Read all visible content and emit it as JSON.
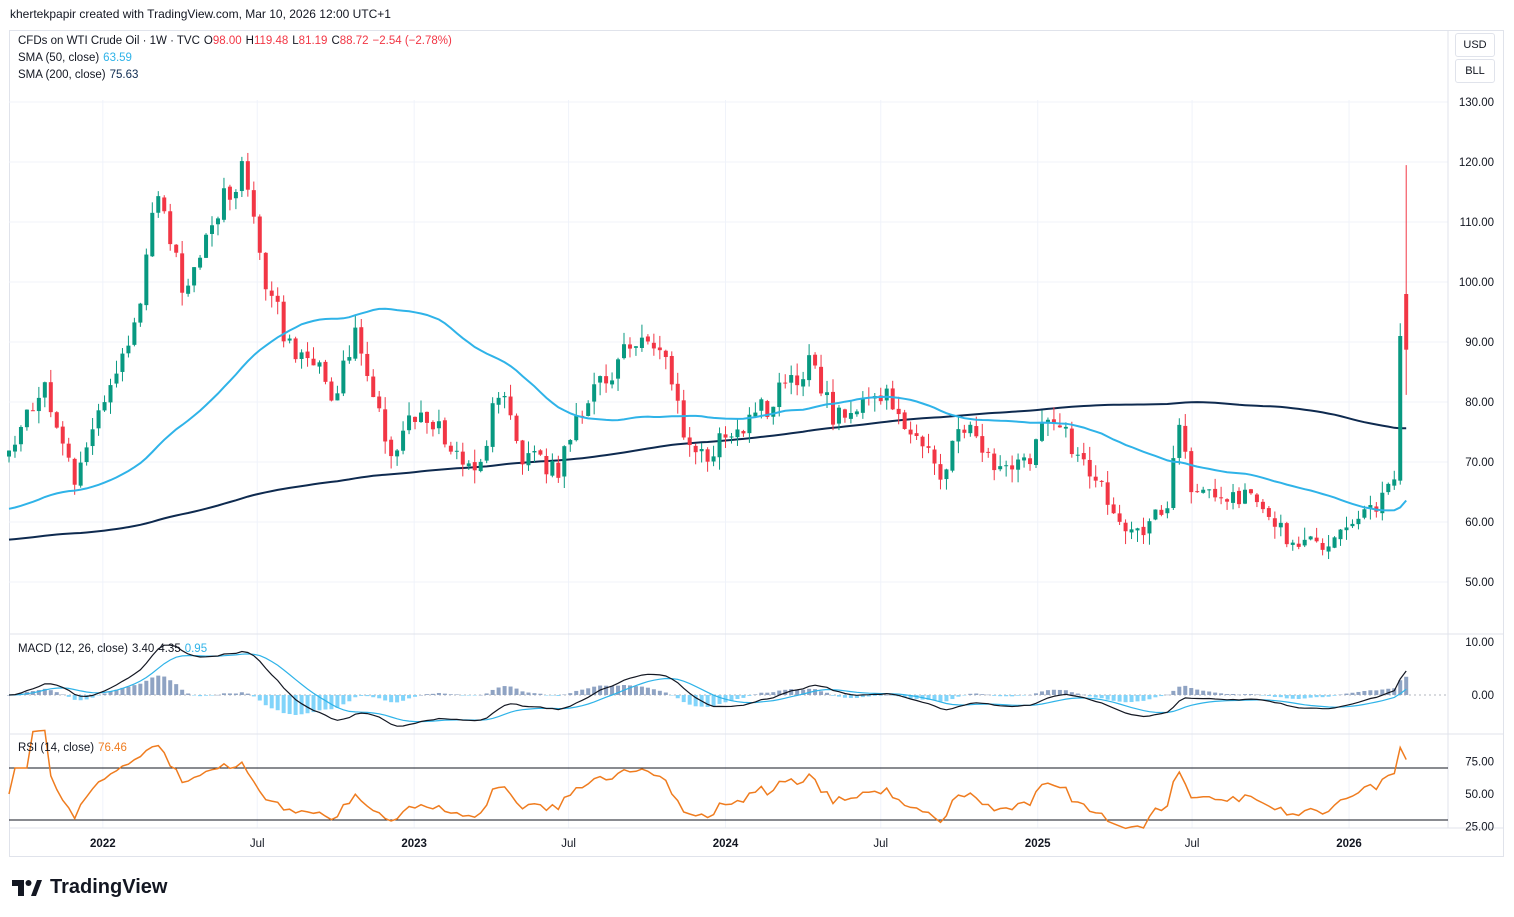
{
  "header": {
    "creator": "khertekpapir created with TradingView.com, Mar 10, 2026 12:00 UTC+1"
  },
  "legend": {
    "symbol": "CFDs on WTI Crude Oil · 1W · TVC",
    "o_label": "O",
    "o_value": "98.00",
    "h_label": "H",
    "h_value": "119.48",
    "l_label": "L",
    "l_value": "81.19",
    "c_label": "C",
    "c_value": "88.72",
    "change": "−2.54 (−2.78%)",
    "sma50_label": "SMA (50, close)",
    "sma50_value": "63.59",
    "sma200_label": "SMA (200, close)",
    "sma200_value": "75.63",
    "macd_label": "MACD (12, 26, close)",
    "macd_v1": "3.40",
    "macd_v2": "4.35",
    "macd_v3": "0.95",
    "rsi_label": "RSI (14, close)",
    "rsi_value": "76.46"
  },
  "scale": {
    "currency": "USD",
    "unit": "BLL"
  },
  "brand": {
    "name": "TradingView"
  },
  "colors": {
    "up": "#089981",
    "down": "#f23645",
    "sma50": "#2fb3e8",
    "sma200": "#0e2a4f",
    "macd": "#131722",
    "signal": "#2fb3e8",
    "rsi": "#ef7c1f",
    "hist_pos": "#8fa3c3",
    "hist_neg": "#81d4fa"
  },
  "chart_data": [
    {
      "type": "candlestick",
      "title": "CFDs on WTI Crude Oil · 1W · TVC",
      "y_ticks": [
        50,
        60,
        70,
        80,
        90,
        100,
        110,
        120,
        130
      ],
      "ylim": [
        45.5,
        134.5
      ],
      "x_ticks": [
        "2022",
        "Jul",
        "2023",
        "Jul",
        "2024",
        "Jul",
        "2025",
        "Jul",
        "2026"
      ],
      "x_tick_dates": [
        "2022-01-01",
        "2022-07-01",
        "2023-01-01",
        "2023-07-01",
        "2024-01-01",
        "2024-07-01",
        "2025-01-01",
        "2025-07-01",
        "2026-01-01"
      ],
      "x_range": [
        "2021-09-13",
        "2026-04-27"
      ],
      "weekly_close_anchors": [
        [
          "2021-09-13",
          71.5
        ],
        [
          "2021-10-25",
          83.5
        ],
        [
          "2021-11-29",
          66.5
        ],
        [
          "2022-01-10",
          83.0
        ],
        [
          "2022-02-07",
          91.5
        ],
        [
          "2022-03-07",
          115.0
        ],
        [
          "2022-04-04",
          98.5
        ],
        [
          "2022-05-09",
          110.0
        ],
        [
          "2022-06-13",
          118.0
        ],
        [
          "2022-07-04",
          104.0
        ],
        [
          "2022-08-08",
          89.0
        ],
        [
          "2022-09-05",
          87.0
        ],
        [
          "2022-09-26",
          79.5
        ],
        [
          "2022-10-24",
          90.5
        ],
        [
          "2022-12-05",
          71.5
        ],
        [
          "2023-01-09",
          79.5
        ],
        [
          "2023-03-13",
          67.0
        ],
        [
          "2023-04-10",
          82.0
        ],
        [
          "2023-05-08",
          71.0
        ],
        [
          "2023-06-19",
          69.0
        ],
        [
          "2023-07-24",
          80.5
        ],
        [
          "2023-09-25",
          91.5
        ],
        [
          "2023-10-23",
          85.5
        ],
        [
          "2023-11-13",
          75.0
        ],
        [
          "2023-12-11",
          71.5
        ],
        [
          "2024-02-12",
          78.5
        ],
        [
          "2024-04-08",
          86.0
        ],
        [
          "2024-05-06",
          78.0
        ],
        [
          "2024-06-10",
          79.0
        ],
        [
          "2024-07-08",
          82.0
        ],
        [
          "2024-09-09",
          67.5
        ],
        [
          "2024-10-07",
          76.0
        ],
        [
          "2024-11-11",
          68.5
        ],
        [
          "2024-12-23",
          70.5
        ],
        [
          "2025-01-13",
          78.5
        ],
        [
          "2025-03-10",
          67.0
        ],
        [
          "2025-04-07",
          60.0
        ],
        [
          "2025-05-05",
          58.0
        ],
        [
          "2025-06-02",
          63.5
        ],
        [
          "2025-06-16",
          75.5
        ],
        [
          "2025-06-30",
          66.5
        ],
        [
          "2025-08-04",
          64.5
        ],
        [
          "2025-09-15",
          63.5
        ],
        [
          "2025-10-20",
          57.5
        ],
        [
          "2025-12-15",
          56.5
        ],
        [
          "2026-01-19",
          61.0
        ],
        [
          "2026-02-09",
          64.0
        ],
        [
          "2026-02-23",
          67.5
        ],
        [
          "2026-03-02",
          91.0
        ],
        [
          "2026-03-09",
          88.72
        ]
      ],
      "last_candle": {
        "date": "2026-03-09",
        "open": 98.0,
        "high": 119.48,
        "low": 81.19,
        "close": 88.72
      },
      "series": [
        {
          "name": "SMA (50, close)",
          "last": 63.59
        },
        {
          "name": "SMA (200, close)",
          "last": 75.63
        }
      ]
    },
    {
      "type": "line",
      "title": "MACD (12, 26, close)",
      "y_ticks": [
        0,
        10
      ],
      "last_values": [
        3.4,
        4.35,
        0.95
      ]
    },
    {
      "type": "line",
      "title": "RSI (14, close)",
      "y_ticks": [
        25,
        50,
        75
      ],
      "bands": [
        70,
        30
      ],
      "last_value": 76.46
    }
  ]
}
